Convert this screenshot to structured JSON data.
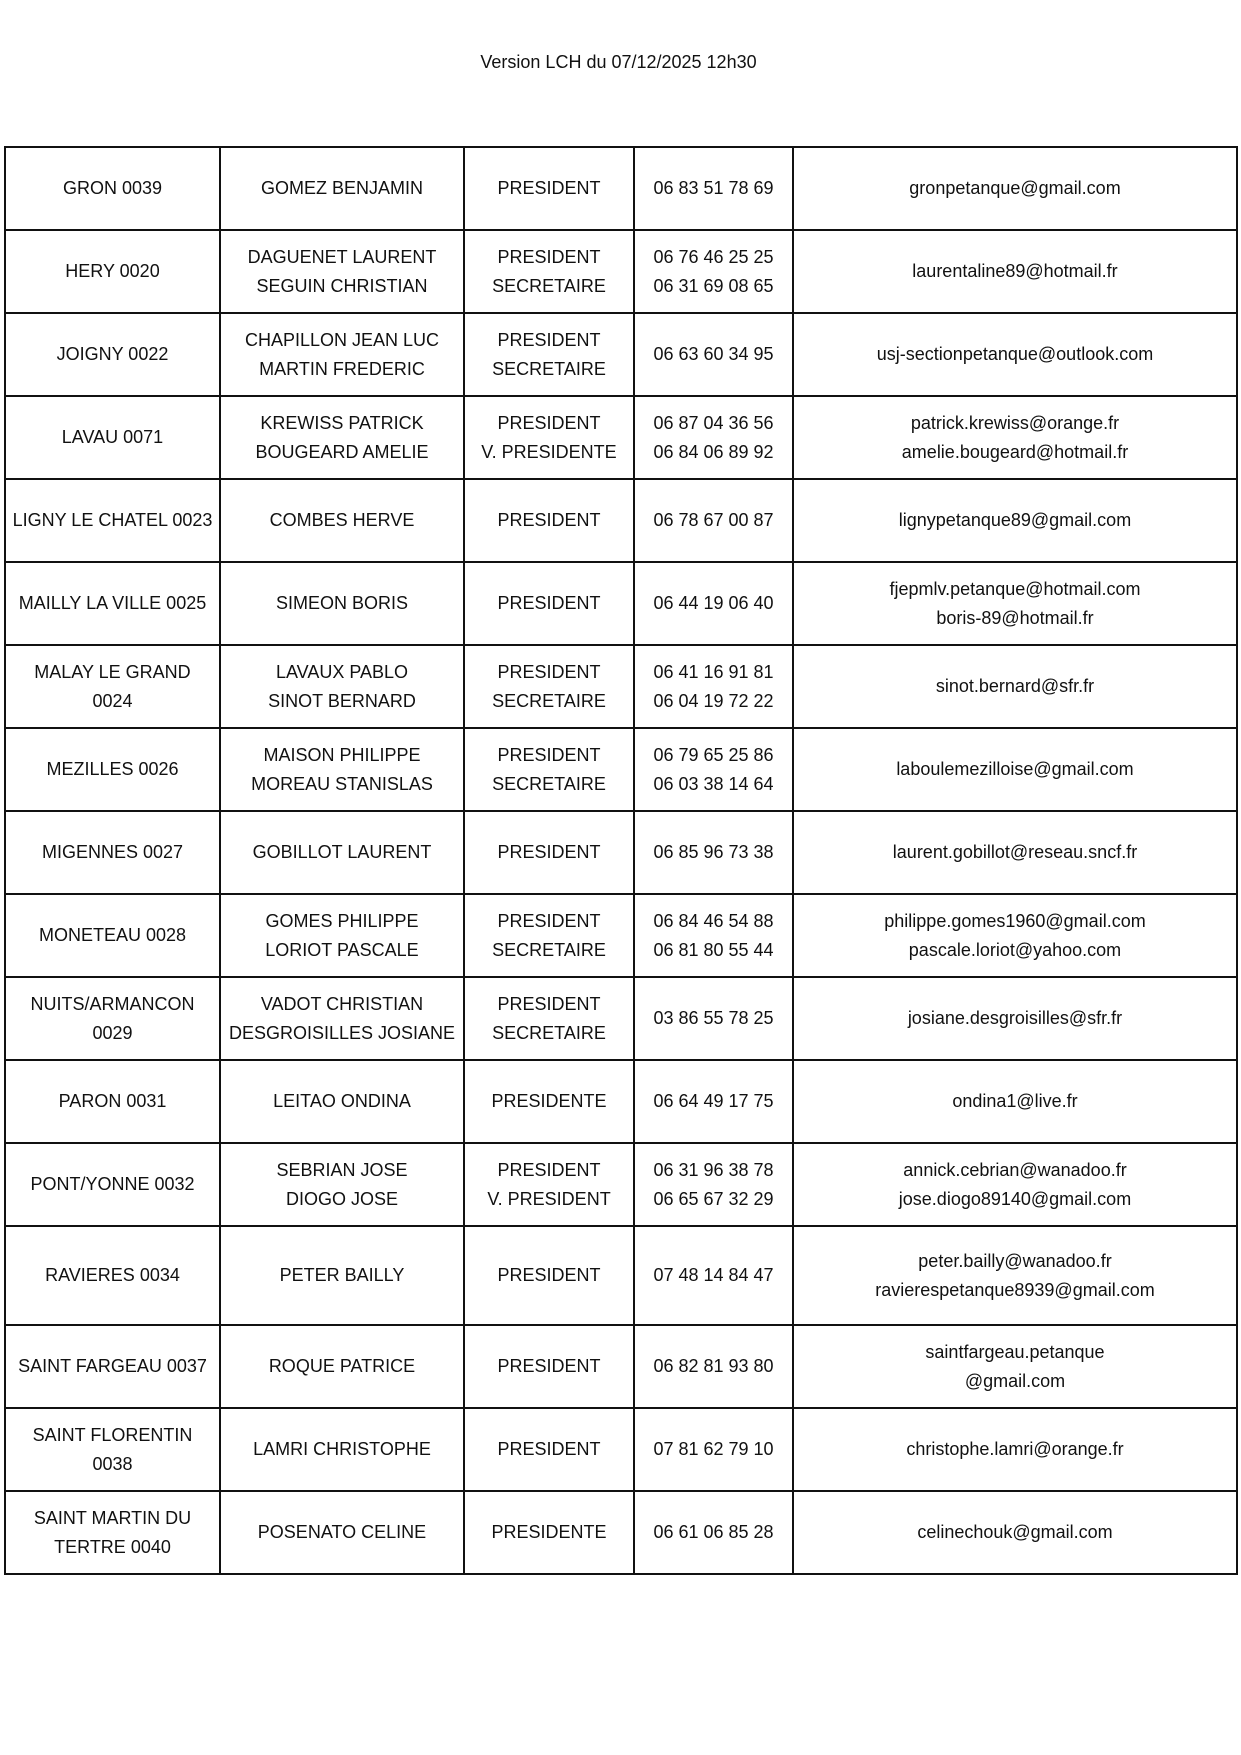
{
  "title": "Version LCH du 07/12/2025 12h30",
  "rows": [
    {
      "club": [
        "GRON  0039"
      ],
      "names": [
        "GOMEZ BENJAMIN"
      ],
      "roles": [
        "PRESIDENT"
      ],
      "phones": [
        "06 83 51 78 69"
      ],
      "emails": [
        "gronpetanque@gmail.com"
      ]
    },
    {
      "club": [
        "HERY 0020"
      ],
      "names": [
        "DAGUENET LAURENT",
        "SEGUIN CHRISTIAN"
      ],
      "roles": [
        "PRESIDENT",
        "SECRETAIRE"
      ],
      "phones": [
        "06 76 46 25 25",
        "06 31 69 08 65"
      ],
      "emails": [
        "laurentaline89@hotmail.fr"
      ]
    },
    {
      "club": [
        "JOIGNY  0022"
      ],
      "names": [
        "CHAPILLON JEAN LUC",
        "MARTIN FREDERIC"
      ],
      "roles": [
        "PRESIDENT",
        "SECRETAIRE"
      ],
      "phones": [
        "06 63 60 34 95"
      ],
      "emails": [
        "usj-sectionpetanque@outlook.com"
      ]
    },
    {
      "club": [
        "LAVAU 0071"
      ],
      "names": [
        "KREWISS PATRICK",
        "BOUGEARD AMELIE"
      ],
      "roles": [
        "PRESIDENT",
        "V. PRESIDENTE"
      ],
      "phones": [
        "06 87 04 36 56",
        "06 84 06 89 92"
      ],
      "emails": [
        "patrick.krewiss@orange.fr",
        "amelie.bougeard@hotmail.fr"
      ]
    },
    {
      "club": [
        "LIGNY LE CHATEL 0023"
      ],
      "names": [
        "COMBES HERVE"
      ],
      "roles": [
        "PRESIDENT"
      ],
      "phones": [
        "06 78 67 00 87"
      ],
      "emails": [
        "lignypetanque89@gmail.com"
      ]
    },
    {
      "club": [
        "MAILLY LA VILLE 0025"
      ],
      "names": [
        "SIMEON BORIS"
      ],
      "roles": [
        "PRESIDENT"
      ],
      "phones": [
        "06 44 19 06 40"
      ],
      "emails": [
        "fjepmlv.petanque@hotmail.com",
        "boris-89@hotmail.fr"
      ]
    },
    {
      "club": [
        "MALAY LE GRAND",
        "0024"
      ],
      "names": [
        "LAVAUX PABLO",
        "SINOT BERNARD"
      ],
      "roles": [
        "PRESIDENT",
        "SECRETAIRE"
      ],
      "phones": [
        "06 41 16 91 81",
        "06 04 19 72 22"
      ],
      "emails": [
        "sinot.bernard@sfr.fr"
      ]
    },
    {
      "club": [
        "MEZILLES 0026"
      ],
      "names": [
        "MAISON PHILIPPE",
        "MOREAU STANISLAS"
      ],
      "roles": [
        "PRESIDENT",
        "SECRETAIRE"
      ],
      "phones": [
        "06 79 65 25 86",
        "06 03 38 14 64"
      ],
      "emails": [
        "laboulemezilloise@gmail.com"
      ]
    },
    {
      "club": [
        "MIGENNES  0027"
      ],
      "names": [
        "GOBILLOT LAURENT"
      ],
      "roles": [
        "PRESIDENT"
      ],
      "phones": [
        "06 85 96 73 38"
      ],
      "emails": [
        "laurent.gobillot@reseau.sncf.fr"
      ]
    },
    {
      "club": [
        "MONETEAU  0028"
      ],
      "names": [
        "GOMES PHILIPPE",
        "LORIOT PASCALE"
      ],
      "roles": [
        "PRESIDENT",
        "SECRETAIRE"
      ],
      "phones": [
        "06 84 46 54 88",
        "06 81 80 55 44"
      ],
      "emails": [
        "philippe.gomes1960@gmail.com",
        "pascale.loriot@yahoo.com"
      ]
    },
    {
      "club": [
        "NUITS/ARMANCON",
        "0029"
      ],
      "names": [
        "VADOT CHRISTIAN",
        "DESGROISILLES JOSIANE"
      ],
      "roles": [
        "PRESIDENT",
        "SECRETAIRE"
      ],
      "phones": [
        "03 86 55 78 25"
      ],
      "emails": [
        "josiane.desgroisilles@sfr.fr"
      ]
    },
    {
      "club": [
        "PARON  0031"
      ],
      "names": [
        "LEITAO ONDINA"
      ],
      "roles": [
        "PRESIDENTE"
      ],
      "phones": [
        "06 64 49 17 75"
      ],
      "emails": [
        "ondina1@live.fr"
      ]
    },
    {
      "club": [
        "PONT/YONNE 0032"
      ],
      "names": [
        "SEBRIAN JOSE",
        "DIOGO JOSE"
      ],
      "roles": [
        "PRESIDENT",
        "V. PRESIDENT"
      ],
      "phones": [
        "06  31 96 38 78",
        "06 65 67 32 29"
      ],
      "emails": [
        "annick.cebrian@wanadoo.fr",
        "jose.diogo89140@gmail.com"
      ]
    },
    {
      "club": [
        "RAVIERES  0034"
      ],
      "names": [
        "PETER BAILLY"
      ],
      "roles": [
        "PRESIDENT"
      ],
      "phones": [
        "07 48 14 84 47"
      ],
      "emails": [
        "peter.bailly@wanadoo.fr",
        "ravierespetanque8939@gmail.com"
      ]
    },
    {
      "club": [
        "SAINT FARGEAU  0037"
      ],
      "names": [
        "ROQUE PATRICE"
      ],
      "roles": [
        "PRESIDENT"
      ],
      "phones": [
        "06 82 81 93 80"
      ],
      "emails": [
        "saintfargeau.petanque",
        "@gmail.com"
      ]
    },
    {
      "club": [
        "SAINT FLORENTIN",
        "0038"
      ],
      "names": [
        "LAMRI CHRISTOPHE"
      ],
      "roles": [
        "PRESIDENT"
      ],
      "phones": [
        "07 81 62 79 10"
      ],
      "emails": [
        "christophe.lamri@orange.fr"
      ]
    },
    {
      "club": [
        "SAINT MARTIN DU",
        "TERTRE 0040"
      ],
      "names": [
        "POSENATO CELINE"
      ],
      "roles": [
        "PRESIDENTE"
      ],
      "phones": [
        "06 61 06 85 28"
      ],
      "emails": [
        "celinechouk@gmail.com"
      ]
    }
  ]
}
